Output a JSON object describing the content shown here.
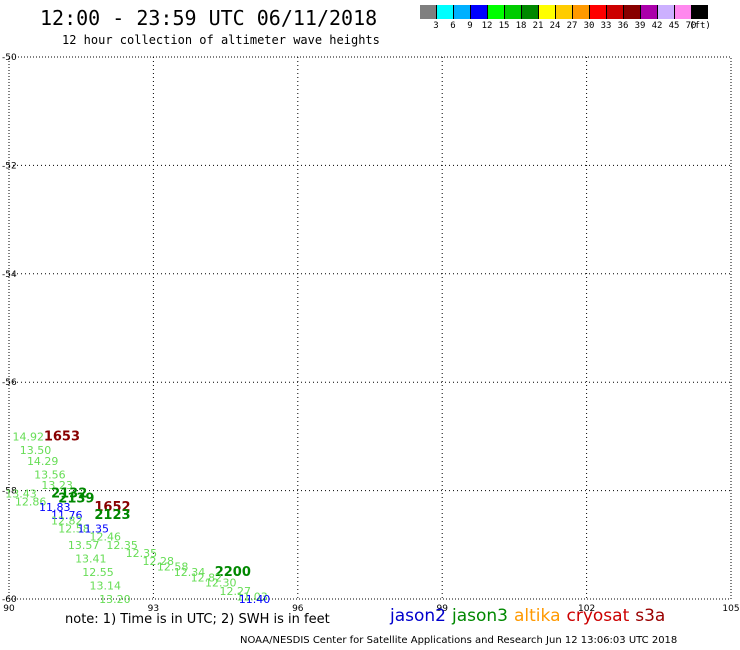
{
  "header": {
    "title": "12:00 - 23:59 UTC 06/11/2018",
    "subtitle": "12 hour collection of altimeter wave heights"
  },
  "legend": {
    "colors": [
      "#7f7f7f",
      "#00ffff",
      "#00b0ff",
      "#0000ff",
      "#00ff00",
      "#00cc00",
      "#008800",
      "#ffff00",
      "#ffcc00",
      "#ff9900",
      "#ff0000",
      "#cc0000",
      "#880000",
      "#aa00aa",
      "#ccb0ff",
      "#ff88ee",
      "#000000"
    ],
    "labels": [
      "3",
      "6",
      "9",
      "12",
      "15",
      "18",
      "21",
      "24",
      "27",
      "30",
      "33",
      "36",
      "39",
      "42",
      "45",
      "70",
      "(ft)"
    ]
  },
  "map": {
    "lon_ticks": [
      "90",
      "93",
      "96",
      "99",
      "102",
      "105"
    ],
    "lat_ticks": [
      "-50",
      "-52",
      "-54",
      "-56",
      "-58",
      "-60"
    ],
    "lon_range": [
      90,
      105
    ],
    "lat_range": [
      -60,
      -50
    ],
    "grid": true,
    "wave_labels": [
      {
        "text": "14.92",
        "lon": 90.4,
        "lat": -57.0,
        "color": "#66dd55"
      },
      {
        "text": "1653",
        "lon": 91.1,
        "lat": -57.0,
        "color": "#880000"
      },
      {
        "text": "13.50",
        "lon": 90.55,
        "lat": -57.25,
        "color": "#66dd55"
      },
      {
        "text": "14.29",
        "lon": 90.7,
        "lat": -57.45,
        "color": "#66dd55"
      },
      {
        "text": "13.56",
        "lon": 90.85,
        "lat": -57.7,
        "color": "#66dd55"
      },
      {
        "text": "13.23",
        "lon": 91.0,
        "lat": -57.9,
        "color": "#66dd55"
      },
      {
        "text": "13.43",
        "lon": 90.25,
        "lat": -58.05,
        "color": "#66dd55"
      },
      {
        "text": "2132",
        "lon": 91.25,
        "lat": -58.05,
        "color": "#008800"
      },
      {
        "text": "2139",
        "lon": 91.4,
        "lat": -58.15,
        "color": "#008800"
      },
      {
        "text": "12.86",
        "lon": 90.45,
        "lat": -58.2,
        "color": "#66dd55"
      },
      {
        "text": "11.83",
        "lon": 90.95,
        "lat": -58.3,
        "color": "#0000ff"
      },
      {
        "text": "1652",
        "lon": 92.15,
        "lat": -58.3,
        "color": "#880000"
      },
      {
        "text": "11.76",
        "lon": 91.2,
        "lat": -58.45,
        "color": "#0000ff"
      },
      {
        "text": "2123",
        "lon": 92.15,
        "lat": -58.45,
        "color": "#008800"
      },
      {
        "text": "12.82",
        "lon": 91.2,
        "lat": -58.55,
        "color": "#66dd55"
      },
      {
        "text": "12.58",
        "lon": 91.35,
        "lat": -58.7,
        "color": "#66dd55"
      },
      {
        "text": "11.35",
        "lon": 91.75,
        "lat": -58.7,
        "color": "#0000ff"
      },
      {
        "text": "12.46",
        "lon": 92.0,
        "lat": -58.85,
        "color": "#66dd55"
      },
      {
        "text": "13.57",
        "lon": 91.55,
        "lat": -59.0,
        "color": "#66dd55"
      },
      {
        "text": "12.35",
        "lon": 92.35,
        "lat": -59.0,
        "color": "#66dd55"
      },
      {
        "text": "12.35",
        "lon": 92.75,
        "lat": -59.15,
        "color": "#66dd55"
      },
      {
        "text": "13.41",
        "lon": 91.7,
        "lat": -59.25,
        "color": "#66dd55"
      },
      {
        "text": "12.28",
        "lon": 93.1,
        "lat": -59.3,
        "color": "#66dd55"
      },
      {
        "text": "12.58",
        "lon": 93.4,
        "lat": -59.4,
        "color": "#66dd55"
      },
      {
        "text": "12.55",
        "lon": 91.85,
        "lat": -59.5,
        "color": "#66dd55"
      },
      {
        "text": "12.34",
        "lon": 93.75,
        "lat": -59.5,
        "color": "#66dd55"
      },
      {
        "text": "2200",
        "lon": 94.65,
        "lat": -59.5,
        "color": "#008800"
      },
      {
        "text": "12.82",
        "lon": 94.1,
        "lat": -59.6,
        "color": "#66dd55"
      },
      {
        "text": "13.14",
        "lon": 92.0,
        "lat": -59.75,
        "color": "#66dd55"
      },
      {
        "text": "12.30",
        "lon": 94.4,
        "lat": -59.7,
        "color": "#66dd55"
      },
      {
        "text": "12.27",
        "lon": 94.7,
        "lat": -59.85,
        "color": "#66dd55"
      },
      {
        "text": "13.20",
        "lon": 92.2,
        "lat": -60.0,
        "color": "#66dd55"
      },
      {
        "text": "11.03",
        "lon": 95.05,
        "lat": -59.95,
        "color": "#66dd55"
      },
      {
        "text": "11.40",
        "lon": 95.1,
        "lat": -60.0,
        "color": "#0000ff"
      }
    ]
  },
  "footer": {
    "note": "note: 1) Time is in UTC; 2) SWH is in feet",
    "satellites": [
      {
        "name": "jason2",
        "color": "#0000cc"
      },
      {
        "name": "jason3",
        "color": "#008800"
      },
      {
        "name": "altika",
        "color": "#ff9900"
      },
      {
        "name": "cryosat",
        "color": "#cc0000"
      },
      {
        "name": "s3a",
        "color": "#990000"
      }
    ],
    "credit": "NOAA/NESDIS Center for Satellite Applications and Research   Jun 12 13:06:03 UTC 2018"
  }
}
